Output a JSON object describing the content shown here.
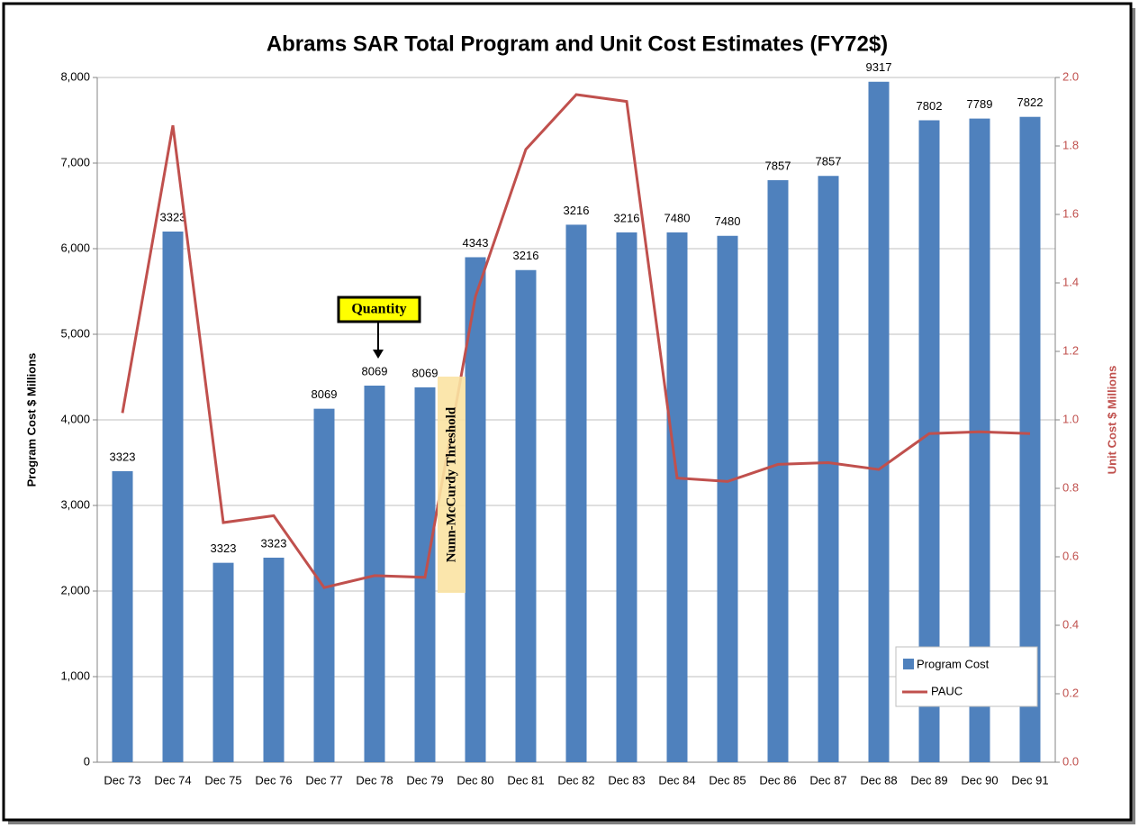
{
  "chart_data": {
    "type": "bar_line",
    "title": "Abrams SAR Total Program and Unit Cost Estimates (FY72$)",
    "y_label": "Program Cost $ Millions",
    "y2_label": "Unit Cost $ Millions",
    "categories": [
      "Dec 73",
      "Dec 74",
      "Dec 75",
      "Dec 76",
      "Dec 77",
      "Dec 78",
      "Dec 79",
      "Dec 80",
      "Dec 81",
      "Dec 82",
      "Dec 83",
      "Dec 84",
      "Dec 85",
      "Dec 86",
      "Dec 87",
      "Dec 88",
      "Dec 89",
      "Dec 90",
      "Dec 91"
    ],
    "series": [
      {
        "name": "Program Cost",
        "type": "bar",
        "color": "#4f81bd",
        "values": [
          3400,
          6200,
          2330,
          2390,
          4130,
          4400,
          4380,
          5900,
          5750,
          6280,
          6190,
          6190,
          6150,
          6800,
          6850,
          7950,
          7500,
          7520,
          7540
        ],
        "quantities": [
          3323,
          3323,
          3323,
          3323,
          8069,
          8069,
          8069,
          4343,
          3216,
          3216,
          3216,
          7480,
          7480,
          7857,
          7857,
          9317,
          7802,
          7789,
          7822
        ]
      },
      {
        "name": "PAUC",
        "type": "line",
        "axis": "y2",
        "color": "#c0504d",
        "values": [
          1.02,
          1.86,
          0.7,
          0.72,
          0.51,
          0.545,
          0.54,
          1.36,
          1.79,
          1.95,
          1.93,
          0.83,
          0.82,
          0.87,
          0.875,
          0.855,
          0.96,
          0.965,
          0.96
        ]
      }
    ],
    "ylim": [
      0,
      8000
    ],
    "yticks": [
      0,
      {
        "value": 1000,
        "label": "1,000"
      },
      {
        "value": 2000,
        "label": "2,000"
      },
      {
        "value": 3000,
        "label": "3,000"
      },
      {
        "value": 4000,
        "label": "4,000"
      },
      {
        "value": 5000,
        "label": "5,000"
      },
      {
        "value": 6000,
        "label": "6,000"
      },
      {
        "value": 7000,
        "label": "7,000"
      },
      {
        "value": 8000,
        "label": "8,000"
      }
    ],
    "y2lim": [
      0,
      2
    ],
    "y2ticks": [
      {
        "value": 0,
        "label": "0.0"
      },
      {
        "value": 0.2,
        "label": "0.2"
      },
      {
        "value": 0.4,
        "label": "0.4"
      },
      {
        "value": 0.6,
        "label": "0.6"
      },
      {
        "value": 0.8,
        "label": "0.8"
      },
      {
        "value": 1,
        "label": "1.0"
      },
      {
        "value": 1.2,
        "label": "1.2"
      },
      {
        "value": 1.4,
        "label": "1.4"
      },
      {
        "value": 1.6,
        "label": "1.6"
      },
      {
        "value": 1.8,
        "label": "1.8"
      },
      {
        "value": 2,
        "label": "2.0"
      }
    ],
    "grid": true,
    "legend": "bottom-right",
    "annotations": [
      "Quantity",
      "Nunn-McCurdy Threshold"
    ]
  }
}
